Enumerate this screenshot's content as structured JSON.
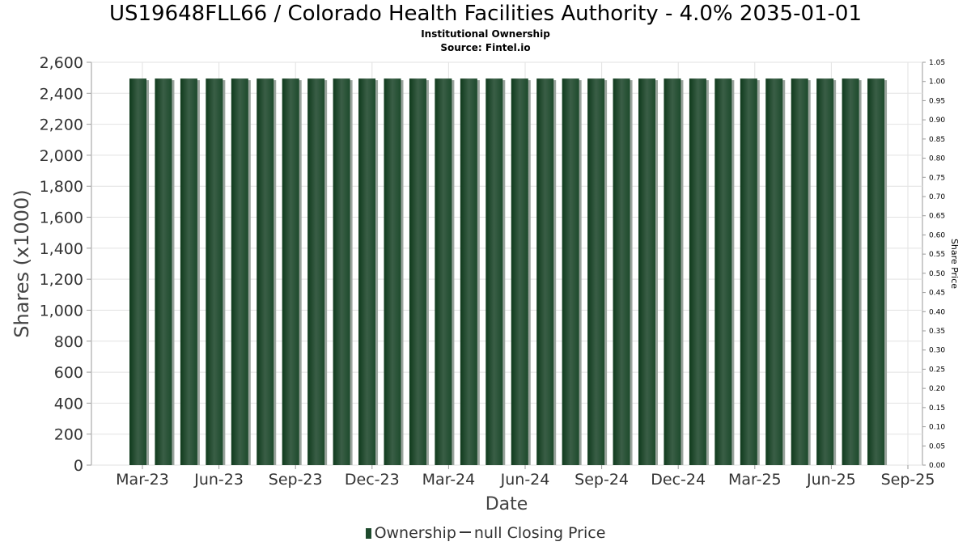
{
  "chart_data": {
    "type": "bar",
    "title": "US19648FLL66 / Colorado Health Facilities Authority - 4.0% 2035-01-01",
    "subtitle": "Institutional Ownership",
    "source": "Source: Fintel.io",
    "xlabel": "Date",
    "ylabel": "Shares (x1000)",
    "ylabel_right": "Share Price",
    "ylim": [
      0,
      2600
    ],
    "ylim_right": [
      0,
      1.05
    ],
    "y_ticks": [
      "0",
      "200",
      "400",
      "600",
      "800",
      "1,000",
      "1,200",
      "1,400",
      "1,600",
      "1,800",
      "2,000",
      "2,200",
      "2,400",
      "2,600"
    ],
    "y_right_ticks": [
      "0.00",
      "0.05",
      "0.10",
      "0.15",
      "0.20",
      "0.25",
      "0.30",
      "0.35",
      "0.40",
      "0.45",
      "0.50",
      "0.55",
      "0.60",
      "0.65",
      "0.70",
      "0.75",
      "0.80",
      "0.85",
      "0.90",
      "0.95",
      "1.00",
      "1.05"
    ],
    "x_ticks": [
      "Mar-23",
      "Jun-23",
      "Sep-23",
      "Dec-23",
      "Mar-24",
      "Jun-24",
      "Sep-24",
      "Dec-24",
      "Mar-25",
      "Jun-25",
      "Sep-25"
    ],
    "series": [
      {
        "name": "Ownership",
        "values": [
          2495,
          2495,
          2495,
          2495,
          2495,
          2495,
          2495,
          2495,
          2495,
          2495,
          2495,
          2495,
          2495,
          2495,
          2495,
          2495,
          2495,
          2495,
          2495,
          2495,
          2495,
          2495,
          2495,
          2495,
          2495,
          2495,
          2495,
          2495,
          2495,
          2495
        ]
      }
    ],
    "grid": true,
    "legend_position": "bottom-center",
    "bar_color": "#1d4a2c"
  },
  "legend": {
    "ownership": "Ownership",
    "price": "null Closing Price"
  }
}
